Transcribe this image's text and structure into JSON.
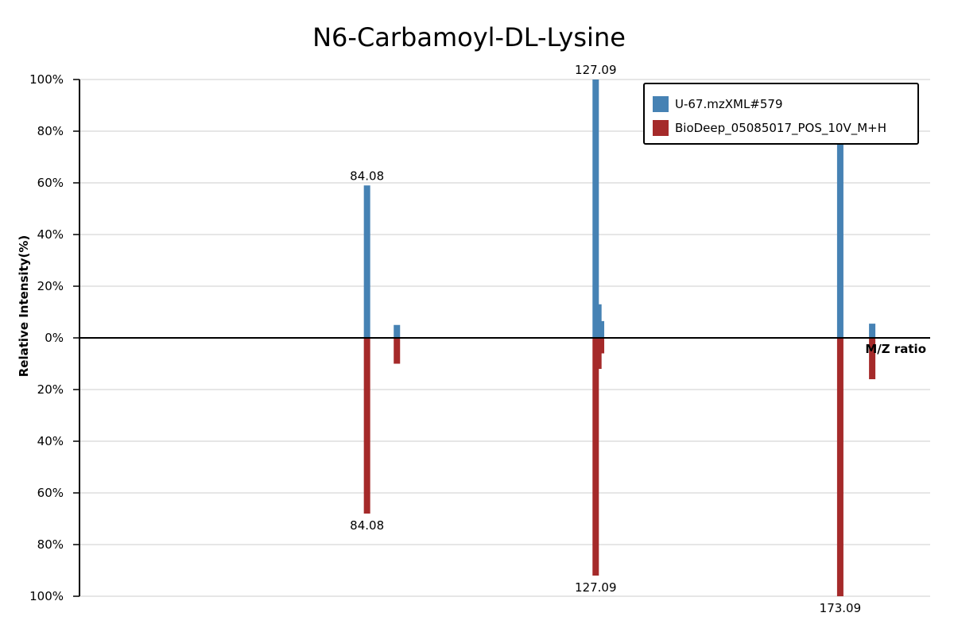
{
  "chart_data": {
    "type": "bar",
    "title": "N6-Carbamoyl-DL-Lysine",
    "xlabel": "M/Z ratio",
    "ylabel": "Relative Intensity(%)",
    "y_ticks_top": [
      "100%",
      "80%",
      "60%",
      "40%",
      "20%",
      "0%"
    ],
    "y_ticks_bottom": [
      "20%",
      "40%",
      "60%",
      "80%",
      "100%"
    ],
    "ylim": [
      -100,
      100
    ],
    "xlim": [
      30,
      190
    ],
    "grid": true,
    "legend_position": "top-right",
    "series": [
      {
        "name": "U-67.mzXML#579",
        "color": "#4682b4",
        "direction": "up",
        "peaks": [
          {
            "mz": 84.08,
            "intensity": 59,
            "label": "84.08"
          },
          {
            "mz": 89.7,
            "intensity": 5,
            "label": ""
          },
          {
            "mz": 127.09,
            "intensity": 100,
            "label": "127.09"
          },
          {
            "mz": 127.6,
            "intensity": 13,
            "label": ""
          },
          {
            "mz": 128.1,
            "intensity": 6.5,
            "label": ""
          },
          {
            "mz": 173.09,
            "intensity": 92,
            "label": "173.09"
          },
          {
            "mz": 179.1,
            "intensity": 5.5,
            "label": ""
          }
        ]
      },
      {
        "name": "BioDeep_05085017_POS_10V_M+H",
        "color": "#a52a2a",
        "direction": "down",
        "peaks": [
          {
            "mz": 84.08,
            "intensity": 68,
            "label": "84.08"
          },
          {
            "mz": 89.7,
            "intensity": 10,
            "label": ""
          },
          {
            "mz": 127.09,
            "intensity": 92,
            "label": "127.09"
          },
          {
            "mz": 127.6,
            "intensity": 12,
            "label": ""
          },
          {
            "mz": 128.1,
            "intensity": 6,
            "label": ""
          },
          {
            "mz": 173.09,
            "intensity": 100,
            "label": "173.09"
          },
          {
            "mz": 179.1,
            "intensity": 16,
            "label": ""
          }
        ]
      }
    ]
  }
}
